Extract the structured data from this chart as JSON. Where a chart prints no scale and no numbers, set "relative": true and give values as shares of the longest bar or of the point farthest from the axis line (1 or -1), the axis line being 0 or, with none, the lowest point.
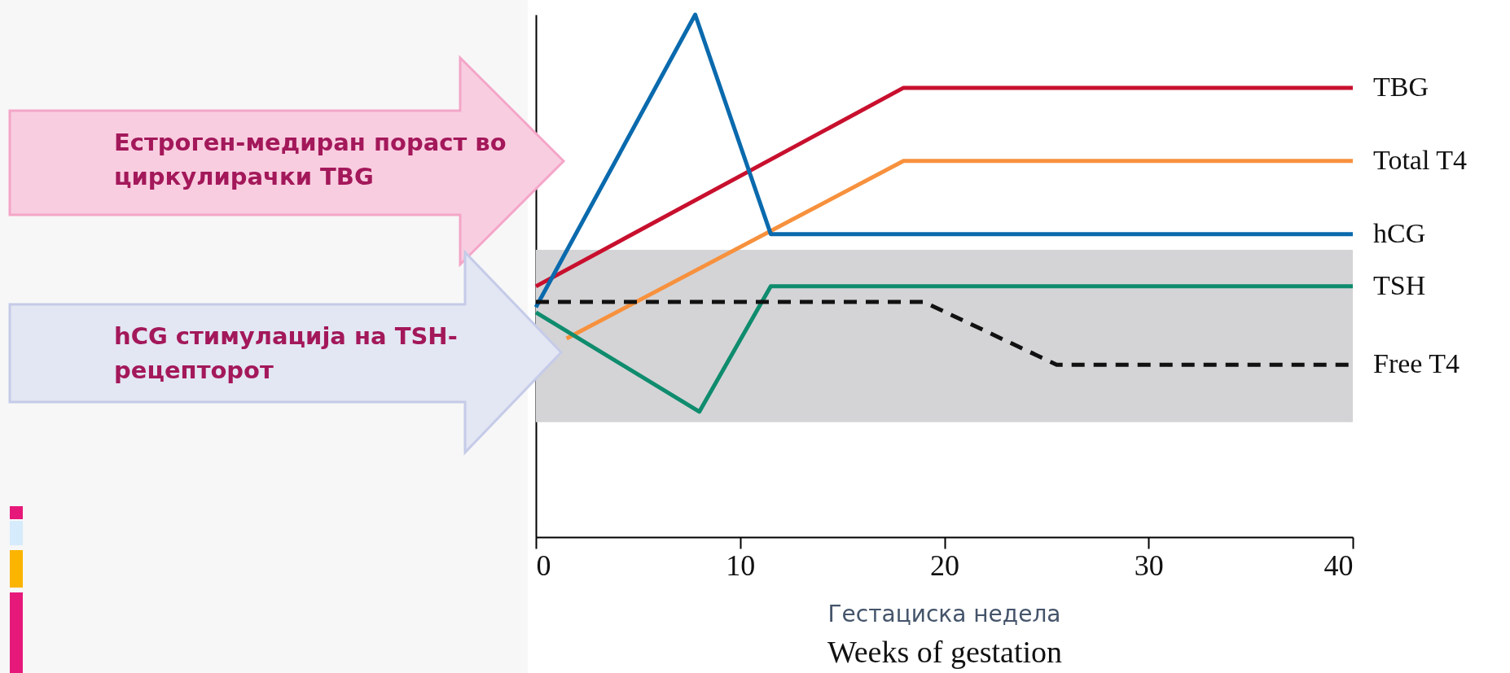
{
  "chart_data": {
    "type": "line",
    "relative": true,
    "xlabel": "Weeks of gestation",
    "xlim": [
      0,
      40
    ],
    "xticks": [
      0,
      10,
      20,
      30,
      40
    ],
    "series": [
      {
        "name": "TBG",
        "color": "#c8102e",
        "x": [
          0,
          18,
          40
        ],
        "values": [
          0.48,
          0.86,
          0.86
        ]
      },
      {
        "name": "Total T4",
        "color": "#f7913d",
        "x": [
          1.5,
          18,
          40
        ],
        "values": [
          0.38,
          0.72,
          0.72
        ]
      },
      {
        "name": "hCG",
        "color": "#0a6aad",
        "x": [
          0,
          7.8,
          11.5,
          40
        ],
        "values": [
          0.44,
          1,
          0.58,
          0.58
        ]
      },
      {
        "name": "TSH",
        "color": "#0f8c6e",
        "x": [
          0,
          8,
          11.5,
          40
        ],
        "values": [
          0.43,
          0.24,
          0.48,
          0.48
        ]
      },
      {
        "name": "Free T4",
        "color": "#111111",
        "line_style": "dashed",
        "x": [
          0,
          19,
          25.5,
          40
        ],
        "values": [
          0.45,
          0.45,
          0.33,
          0.33
        ]
      }
    ],
    "bands": [
      {
        "axis": "y",
        "from": 0.22,
        "to": 0.55,
        "color": "#d4d4d6"
      }
    ],
    "annotations": [
      "Естроген-медиран пораст во циркулирачки TBG",
      "hCG стимулација на TSH-рецепторот",
      "Гестациска недела"
    ]
  }
}
